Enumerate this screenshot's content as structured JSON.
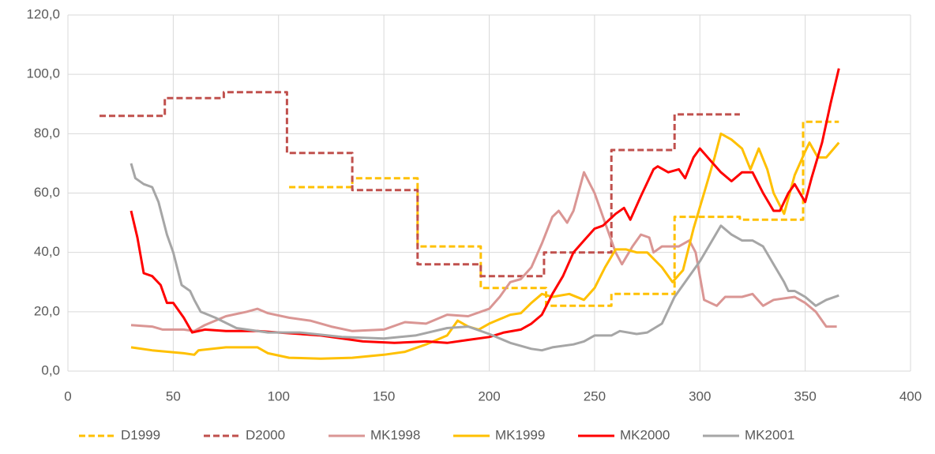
{
  "chart_data": {
    "type": "line",
    "xlim": [
      0,
      400
    ],
    "xticks": [
      0,
      50,
      100,
      150,
      200,
      250,
      300,
      350,
      400
    ],
    "ylim": [
      0,
      120
    ],
    "yticks": [
      {
        "value": 0,
        "label": "0,0"
      },
      {
        "value": 20,
        "label": "20,0"
      },
      {
        "value": 40,
        "label": "40,0"
      },
      {
        "value": 60,
        "label": "60,0"
      },
      {
        "value": 80,
        "label": "80,0"
      },
      {
        "value": 100,
        "label": "100,0"
      },
      {
        "value": 120,
        "label": "120,0"
      }
    ],
    "grid": true,
    "legend": "bottom",
    "series": [
      {
        "name": "D1999",
        "color": "#ffc000",
        "style": "dashed",
        "x": [
          105,
          135,
          135,
          166,
          166,
          196,
          196,
          227,
          227,
          258,
          258,
          288,
          288,
          319,
          319,
          349,
          349,
          366
        ],
        "values": [
          62,
          62,
          65,
          65,
          42,
          42,
          28,
          28,
          22,
          22,
          26,
          26,
          52,
          52,
          51,
          51,
          84,
          84
        ]
      },
      {
        "name": "D2000",
        "color": "#c0504d",
        "style": "dashed",
        "x": [
          15,
          46,
          46,
          74,
          74,
          104,
          104,
          135,
          135,
          166,
          166,
          196,
          196,
          226,
          226,
          258,
          258,
          288,
          288,
          319
        ],
        "values": [
          86,
          86,
          92,
          92,
          94,
          94,
          73.5,
          73.5,
          61,
          61,
          36,
          36,
          32,
          32,
          40,
          40,
          74.5,
          74.5,
          86.5,
          86.5
        ]
      },
      {
        "name": "MK1998",
        "color": "#da9694",
        "style": "solid",
        "x": [
          30,
          40,
          45,
          55,
          60,
          65,
          75,
          85,
          90,
          95,
          105,
          115,
          125,
          135,
          150,
          160,
          170,
          180,
          190,
          200,
          205,
          210,
          215,
          220,
          225,
          230,
          233,
          237,
          240,
          245,
          250,
          255,
          260,
          263,
          268,
          272,
          276,
          278,
          282,
          290,
          295,
          298,
          302,
          308,
          312,
          320,
          325,
          330,
          335,
          345,
          350,
          355,
          360,
          365
        ],
        "values": [
          15.5,
          15,
          14,
          14,
          13.5,
          15.5,
          18.5,
          20,
          21,
          19.5,
          18,
          17,
          15,
          13.5,
          14,
          16.5,
          16,
          19,
          18.5,
          21,
          25,
          30,
          31,
          35,
          43,
          52,
          54,
          50,
          54,
          67,
          60,
          50,
          40,
          36,
          42,
          46,
          45,
          40,
          42,
          42,
          44,
          40,
          24,
          22,
          25,
          25,
          26,
          22,
          24,
          25,
          23,
          20,
          15,
          15
        ]
      },
      {
        "name": "MK1999",
        "color": "#ffc000",
        "style": "solid",
        "x": [
          30,
          40,
          55,
          60,
          62,
          75,
          90,
          95,
          105,
          120,
          135,
          150,
          160,
          170,
          180,
          185,
          190,
          195,
          200,
          210,
          215,
          220,
          225,
          230,
          238,
          245,
          250,
          255,
          260,
          265,
          270,
          275,
          282,
          287,
          292,
          297,
          302,
          307,
          310,
          315,
          320,
          324,
          328,
          332,
          335,
          340,
          345,
          350,
          352,
          356,
          360,
          366
        ],
        "values": [
          8,
          7,
          6,
          5.5,
          7,
          8,
          8,
          6,
          4.5,
          4.2,
          4.5,
          5.5,
          6.5,
          9,
          12,
          17,
          15,
          14,
          16,
          19,
          19.5,
          23,
          26,
          25,
          26,
          24,
          28,
          35,
          41,
          41,
          40,
          40,
          35,
          30,
          34,
          48,
          60,
          72,
          80,
          78,
          75,
          68,
          75,
          68,
          60,
          53,
          66,
          74,
          77,
          72,
          72,
          77
        ]
      },
      {
        "name": "MK2000",
        "color": "#ff0000",
        "style": "solid",
        "x": [
          30,
          33,
          36,
          40,
          44,
          47,
          50,
          55,
          59,
          65,
          75,
          90,
          100,
          120,
          140,
          155,
          170,
          180,
          190,
          200,
          207,
          215,
          220,
          225,
          230,
          235,
          240,
          245,
          250,
          254,
          260,
          264,
          267,
          272,
          278,
          280,
          285,
          290,
          293,
          297,
          300,
          305,
          310,
          315,
          320,
          325,
          330,
          335,
          338,
          342,
          345,
          350,
          353,
          358,
          362,
          366
        ],
        "values": [
          54,
          45,
          33,
          32,
          29,
          23,
          23,
          18,
          13,
          14,
          13.5,
          13.5,
          13,
          12,
          10,
          9.5,
          10,
          9.5,
          10.5,
          11.5,
          13,
          14,
          16,
          19,
          26,
          32,
          40,
          44,
          48,
          49,
          53,
          55,
          51,
          59,
          68,
          69,
          67,
          68,
          65,
          72,
          75,
          71,
          67,
          64,
          67,
          67,
          60,
          54,
          54,
          60,
          63,
          57,
          65,
          77,
          90,
          102
        ]
      },
      {
        "name": "MK2001",
        "color": "#a6a6a6",
        "style": "solid",
        "x": [
          30,
          32,
          36,
          40,
          43,
          47,
          50,
          54,
          58,
          60,
          63,
          70,
          80,
          95,
          110,
          130,
          150,
          165,
          180,
          190,
          200,
          210,
          220,
          225,
          230,
          240,
          245,
          250,
          258,
          262,
          270,
          275,
          282,
          288,
          295,
          300,
          305,
          310,
          315,
          320,
          325,
          330,
          335,
          340,
          342,
          345,
          350,
          355,
          360,
          366
        ],
        "values": [
          70,
          65,
          63,
          62,
          57,
          46,
          40,
          29,
          27,
          24,
          20,
          18,
          14.5,
          13,
          13,
          11.5,
          11,
          12,
          14.5,
          15,
          12.5,
          9.5,
          7.5,
          7,
          8,
          9,
          10,
          12,
          12,
          13.5,
          12.5,
          13,
          16,
          25,
          32,
          37,
          43,
          49,
          46,
          44,
          44,
          42,
          36,
          30,
          27,
          27,
          25,
          22,
          24,
          25.5
        ]
      }
    ]
  }
}
